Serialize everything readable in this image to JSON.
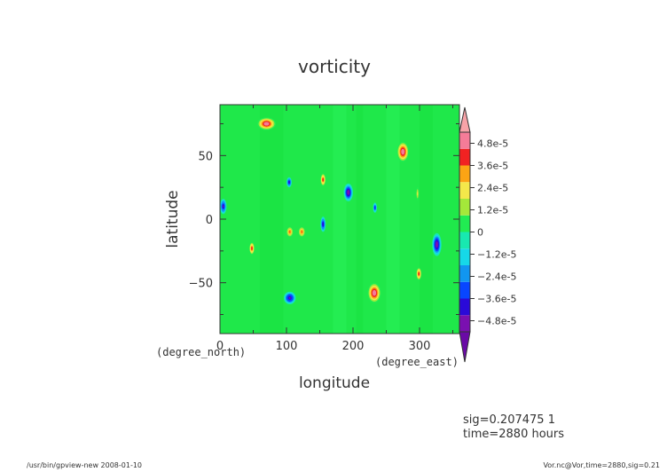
{
  "chart_data": {
    "type": "heatmap",
    "title": "vorticity",
    "xlabel": "longitude",
    "ylabel": "latitude",
    "x_units": "(degree_east)",
    "y_units": "(degree_north)",
    "xlim": [
      0,
      360
    ],
    "ylim": [
      -90,
      90
    ],
    "x_ticks": [
      0,
      100,
      200,
      300
    ],
    "y_ticks": [
      -50,
      0,
      50
    ],
    "colorbar": {
      "min": -5.4e-05,
      "max": 5.4e-05,
      "tick_values": [
        4.8e-05,
        3.6e-05,
        2.4e-05,
        1.2e-05,
        0,
        -1.2e-05,
        -2.4e-05,
        -3.6e-05,
        -4.8e-05
      ],
      "tick_labels": [
        "4.8e-5",
        "3.6e-5",
        "2.4e-5",
        "1.2e-5",
        "0",
        "−1.2e-5",
        "−2.4e-5",
        "−3.6e-5",
        "−4.8e-5"
      ]
    },
    "vortices": [
      {
        "lon": 70,
        "lat": 75,
        "rlon": 14,
        "rlat": 5,
        "value": 5.6e-05
      },
      {
        "lon": 275,
        "lat": 53,
        "rlon": 9,
        "rlat": 8,
        "value": 5.8e-05
      },
      {
        "lon": 232,
        "lat": -58,
        "rlon": 10,
        "rlat": 8,
        "value": 5.8e-05
      },
      {
        "lon": 193,
        "lat": 21,
        "rlon": 7,
        "rlat": 7,
        "value": -5.4e-05
      },
      {
        "lon": 326,
        "lat": -20,
        "rlon": 7,
        "rlat": 9,
        "value": -5.4e-05
      },
      {
        "lon": 105,
        "lat": -62,
        "rlon": 9,
        "rlat": 5,
        "value": -5e-05
      },
      {
        "lon": 5,
        "lat": 10,
        "rlon": 5,
        "rlat": 6,
        "value": -4.6e-05
      },
      {
        "lon": 104,
        "lat": 29,
        "rlon": 4,
        "rlat": 4,
        "value": -4.4e-05
      },
      {
        "lon": 155,
        "lat": -4,
        "rlon": 4,
        "rlat": 6,
        "value": -4.4e-05
      },
      {
        "lon": 233,
        "lat": 9,
        "rlon": 3,
        "rlat": 4,
        "value": -3.8e-05
      },
      {
        "lon": 155,
        "lat": 31,
        "rlon": 4,
        "rlat": 5,
        "value": 4.2e-05
      },
      {
        "lon": 48,
        "lat": -23,
        "rlon": 4,
        "rlat": 5,
        "value": 4.2e-05
      },
      {
        "lon": 105,
        "lat": -10,
        "rlon": 5,
        "rlat": 4,
        "value": 4e-05
      },
      {
        "lon": 123,
        "lat": -10,
        "rlon": 5,
        "rlat": 4,
        "value": 4e-05
      },
      {
        "lon": 299,
        "lat": -43,
        "rlon": 4,
        "rlat": 5,
        "value": 4.4e-05
      },
      {
        "lon": 297,
        "lat": 20,
        "rlon": 2,
        "rlat": 5,
        "value": 2.4e-05
      }
    ],
    "grid": false,
    "legend": "colorbar-right"
  },
  "annotations": {
    "sig": "sig=0.207475 1",
    "time": "time=2880 hours",
    "footer_left": "/usr/bin/gpview-new  2008-01-10",
    "footer_right": "Vor.nc@Vor,time=2880,sig=0.21"
  }
}
